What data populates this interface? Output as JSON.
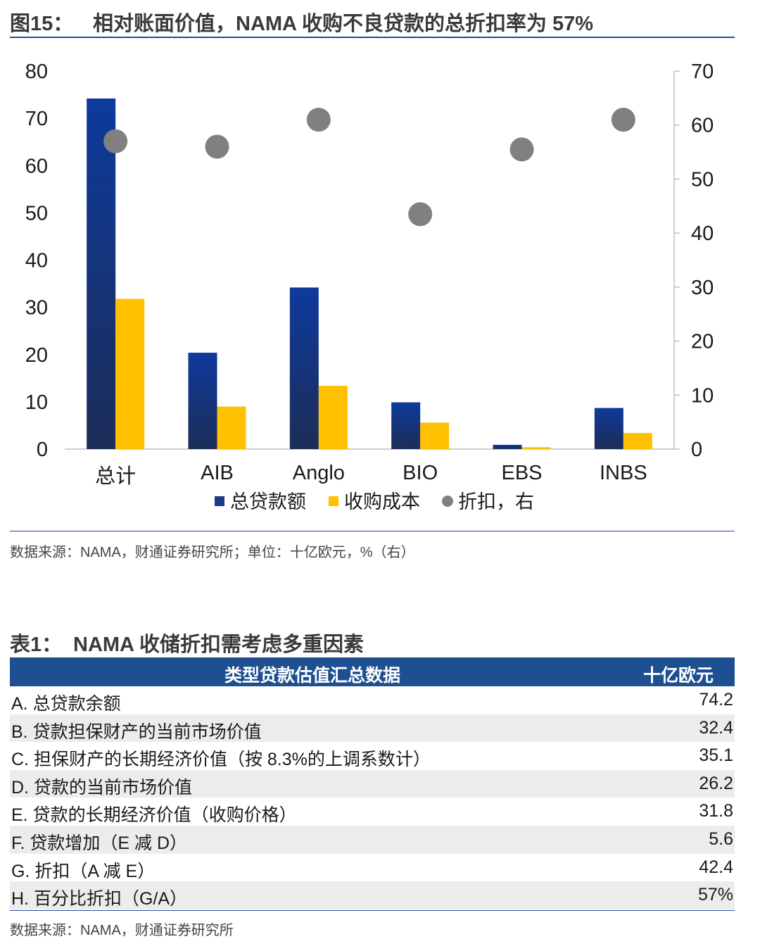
{
  "figure": {
    "number": "图15：",
    "title": "相对账面价值，NAMA 收购不良贷款的总折扣率为 57%",
    "source": "数据来源：NAMA，财通证券研究所；单位：十亿欧元，%（右）"
  },
  "chart_data": {
    "type": "bar",
    "categories": [
      "总计",
      "AIB",
      "Anglo",
      "BIO",
      "EBS",
      "INBS"
    ],
    "series": [
      {
        "name": "总贷款额",
        "axis": "left",
        "kind": "bar",
        "color": "#1a3a8a",
        "values": [
          74.2,
          20.4,
          34.2,
          9.9,
          0.9,
          8.7
        ]
      },
      {
        "name": "收购成本",
        "axis": "left",
        "kind": "bar",
        "color": "#ffc000",
        "values": [
          31.8,
          9.0,
          13.4,
          5.6,
          0.4,
          3.4
        ]
      },
      {
        "name": "折扣，右",
        "axis": "right",
        "kind": "scatter",
        "color": "#808080",
        "values": [
          57,
          56,
          61,
          43.5,
          55.5,
          61
        ]
      }
    ],
    "ylim_left": [
      0,
      80
    ],
    "yticks_left": [
      "0",
      "10",
      "20",
      "30",
      "40",
      "50",
      "60",
      "70",
      "80"
    ],
    "ylim_right": [
      0,
      70
    ],
    "yticks_right": [
      "0",
      "10",
      "20",
      "30",
      "40",
      "50",
      "60",
      "70"
    ],
    "legend_position": "bottom",
    "grid": false
  },
  "table": {
    "number": "表1：",
    "title": "NAMA 收储折扣需考虑多重因素",
    "header_label": "类型贷款估值汇总数据",
    "header_unit": "十亿欧元",
    "rows": [
      {
        "label": "A. 总贷款余额",
        "value": "74.2"
      },
      {
        "label": "B. 贷款担保财产的当前市场价值",
        "value": "32.4"
      },
      {
        "label": "C. 担保财产的长期经济价值（按 8.3%的上调系数计）",
        "value": "35.1"
      },
      {
        "label": "D. 贷款的当前市场价值",
        "value": "26.2"
      },
      {
        "label": "E. 贷款的长期经济价值（收购价格）",
        "value": "31.8"
      },
      {
        "label": "F. 贷款增加（E 减 D）",
        "value": "5.6"
      },
      {
        "label": "G. 折扣（A 减 E）",
        "value": "42.4"
      },
      {
        "label": "H. 百分比折扣（G/A）",
        "value": "57%"
      }
    ],
    "source": "数据来源：NAMA，财通证券研究所"
  }
}
